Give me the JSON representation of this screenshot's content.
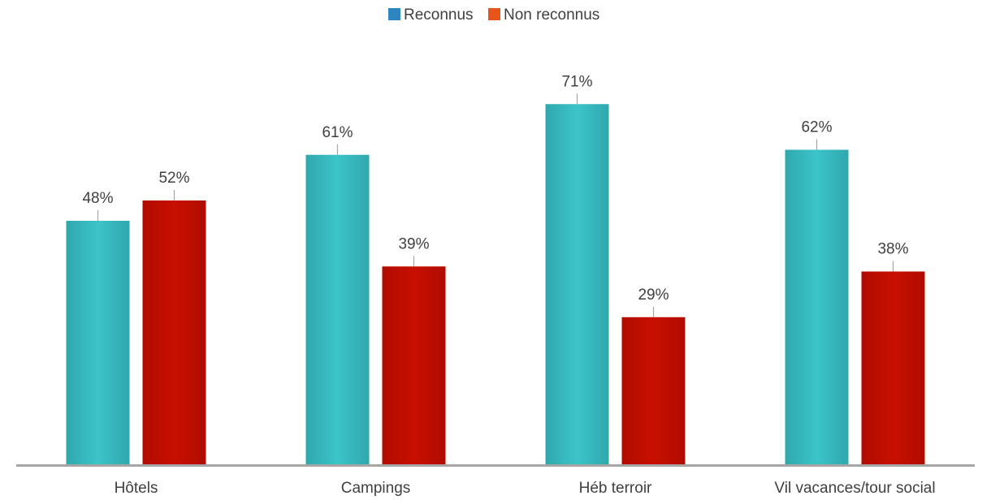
{
  "chart_data": {
    "type": "bar",
    "categories": [
      "Hôtels",
      "Campings",
      "Héb terroir",
      "Vil vacances/tour social"
    ],
    "series": [
      {
        "name": "Reconnus",
        "values": [
          48,
          61,
          71,
          62
        ],
        "data_labels": [
          "48%",
          "61%",
          "71%",
          "62%"
        ],
        "color": "#3bbfc4",
        "legend_color": "#2e86c1"
      },
      {
        "name": "Non reconnus",
        "values": [
          52,
          39,
          29,
          38
        ],
        "data_labels": [
          "52%",
          "39%",
          "29%",
          "38%"
        ],
        "color": "#c00d00",
        "legend_color": "#e8541c"
      }
    ],
    "ylim": [
      0,
      100
    ],
    "legend_position": "top-center",
    "grid": false,
    "axis_color": "#a6a6a6",
    "leader_color": "#a6a6a6"
  }
}
